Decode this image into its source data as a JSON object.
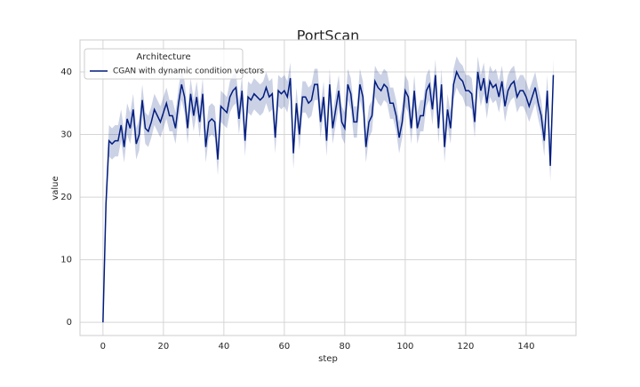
{
  "chart_data": {
    "type": "line",
    "title": "PortScan",
    "xlabel": "step",
    "ylabel": "value",
    "legend_title": "Architecture",
    "legend": "upper left",
    "grid": true,
    "xlim": [
      -7.6,
      156.5
    ],
    "ylim": [
      -2.1,
      45.1
    ],
    "xticks": [
      0,
      20,
      40,
      60,
      80,
      100,
      120,
      140
    ],
    "yticks": [
      0,
      10,
      20,
      30,
      40
    ],
    "x": [
      0,
      1,
      2,
      3,
      4,
      5,
      6,
      7,
      8,
      9,
      10,
      11,
      12,
      13,
      14,
      15,
      16,
      17,
      18,
      19,
      20,
      21,
      22,
      23,
      24,
      25,
      26,
      27,
      28,
      29,
      30,
      31,
      32,
      33,
      34,
      35,
      36,
      37,
      38,
      39,
      40,
      41,
      42,
      43,
      44,
      45,
      46,
      47,
      48,
      49,
      50,
      51,
      52,
      53,
      54,
      55,
      56,
      57,
      58,
      59,
      60,
      61,
      62,
      63,
      64,
      65,
      66,
      67,
      68,
      69,
      70,
      71,
      72,
      73,
      74,
      75,
      76,
      77,
      78,
      79,
      80,
      81,
      82,
      83,
      84,
      85,
      86,
      87,
      88,
      89,
      90,
      91,
      92,
      93,
      94,
      95,
      96,
      97,
      98,
      99,
      100,
      101,
      102,
      103,
      104,
      105,
      106,
      107,
      108,
      109,
      110,
      111,
      112,
      113,
      114,
      115,
      116,
      117,
      118,
      119,
      120,
      121,
      122,
      123,
      124,
      125,
      126,
      127,
      128,
      129,
      130,
      131,
      132,
      133,
      134,
      135,
      136,
      137,
      138,
      139,
      140,
      141,
      142,
      143,
      144,
      145,
      146,
      147,
      148,
      149
    ],
    "series": [
      {
        "name": "CGAN with dynamic condition vectors",
        "color": "#001c7f",
        "values": [
          0,
          19,
          29,
          28.5,
          29,
          29,
          31.5,
          28,
          32.5,
          31,
          34,
          28.5,
          30,
          35.5,
          31,
          30.5,
          32,
          34,
          33,
          32,
          33.5,
          35,
          33,
          33,
          31,
          35,
          38,
          36,
          31,
          36.5,
          33,
          36,
          32,
          36.5,
          28,
          32,
          32.5,
          32,
          26,
          34.5,
          34,
          33.5,
          36,
          37,
          37.5,
          32.5,
          37,
          29,
          36,
          35.5,
          36.5,
          36,
          35.5,
          36,
          37.5,
          36,
          36.5,
          29.5,
          37,
          36.5,
          37,
          36,
          39,
          27,
          35,
          30,
          36,
          36,
          35,
          35.5,
          38,
          38,
          32,
          36,
          29,
          38,
          31,
          34,
          37,
          32,
          31,
          38,
          36.5,
          32,
          32,
          38,
          36,
          28,
          32,
          33,
          38.5,
          37.5,
          37,
          38,
          37.5,
          35,
          35,
          33,
          29.5,
          32,
          37,
          36,
          31,
          37,
          31,
          33,
          33,
          37,
          38,
          34,
          39.5,
          31,
          38,
          28,
          34,
          31,
          38,
          40,
          39,
          38.5,
          37,
          37,
          36.5,
          32,
          40,
          37,
          39,
          35,
          38.5,
          37.5,
          38,
          36,
          38.5,
          34.5,
          37,
          38,
          38.5,
          36,
          37,
          37,
          36,
          34.5,
          36,
          37.5,
          35,
          33,
          29,
          37,
          25,
          39.5
        ],
        "lower": [
          0,
          16.5,
          26.5,
          26,
          26.5,
          26.5,
          29,
          25.5,
          30,
          28.5,
          31.5,
          26,
          27.5,
          33,
          28.5,
          28,
          29.5,
          31.5,
          30.5,
          29.5,
          31,
          32.5,
          30.5,
          30.5,
          28.5,
          32.5,
          35.5,
          33.5,
          28.5,
          34,
          30.5,
          33.5,
          29.5,
          34,
          25.5,
          29.5,
          30,
          29.5,
          23.5,
          32,
          31.5,
          31,
          33.5,
          34.5,
          35,
          30,
          34.5,
          26.5,
          33.5,
          33,
          34,
          33.5,
          33,
          33.5,
          35,
          33.5,
          34,
          27,
          34.5,
          34,
          34.5,
          33.5,
          36.5,
          24.5,
          32.5,
          27.5,
          33.5,
          33.5,
          32.5,
          33,
          35.5,
          35.5,
          29.5,
          33.5,
          26.5,
          35.5,
          28.5,
          31.5,
          34.5,
          29.5,
          28.5,
          35.5,
          34,
          29.5,
          29.5,
          35.5,
          33.5,
          25.5,
          29.5,
          30.5,
          36,
          35,
          34.5,
          35.5,
          35,
          32.5,
          32.5,
          30.5,
          27,
          29.5,
          34.5,
          33.5,
          28.5,
          34.5,
          28.5,
          30.5,
          30.5,
          34.5,
          35.5,
          31.5,
          37,
          28.5,
          35.5,
          25.5,
          31.5,
          28.5,
          35.5,
          37.5,
          36.5,
          36,
          34.5,
          34.5,
          34,
          29.5,
          37.5,
          34.5,
          36.5,
          32.5,
          36,
          35,
          35.5,
          33.5,
          36,
          32,
          34.5,
          35.5,
          36,
          33.5,
          34.5,
          34.5,
          33.5,
          32,
          33.5,
          35,
          32.5,
          30.5,
          26.5,
          34.5,
          22.5,
          37
        ],
        "upper": [
          0,
          21.5,
          31.5,
          31,
          31.5,
          31.5,
          34,
          30.5,
          35,
          33.5,
          36.5,
          31,
          32.5,
          38,
          33.5,
          33,
          34.5,
          36.5,
          35.5,
          34.5,
          36,
          37.5,
          35.5,
          35.5,
          33.5,
          37.5,
          40.5,
          38.5,
          33.5,
          39,
          35.5,
          38.5,
          34.5,
          39,
          30.5,
          34.5,
          35,
          34.5,
          28.5,
          37,
          36.5,
          36,
          38.5,
          39.5,
          40,
          35,
          39.5,
          31.5,
          38.5,
          38,
          39,
          38.5,
          38,
          38.5,
          40,
          38.5,
          39,
          32,
          39.5,
          39,
          39.5,
          38.5,
          41.5,
          29.5,
          37.5,
          32.5,
          38.5,
          38.5,
          37.5,
          38,
          40.5,
          40.5,
          34.5,
          38.5,
          31.5,
          40.5,
          33.5,
          36.5,
          39.5,
          34.5,
          33.5,
          40.5,
          39,
          34.5,
          34.5,
          40.5,
          38.5,
          30.5,
          34.5,
          35.5,
          41,
          40,
          39.5,
          40.5,
          40,
          37.5,
          37.5,
          35.5,
          32,
          34.5,
          39.5,
          38.5,
          33.5,
          39.5,
          33.5,
          35.5,
          35.5,
          39.5,
          40.5,
          36.5,
          42,
          33.5,
          40.5,
          30.5,
          36.5,
          33.5,
          40.5,
          42.5,
          41.5,
          41,
          39.5,
          39.5,
          39,
          34.5,
          42.5,
          39.5,
          41.5,
          37.5,
          41,
          40,
          40.5,
          38.5,
          41,
          37,
          39.5,
          40.5,
          41,
          38.5,
          39.5,
          39.5,
          38.5,
          37,
          38.5,
          40,
          37.5,
          35.5,
          31.5,
          39.5,
          27.5,
          42
        ]
      }
    ]
  }
}
